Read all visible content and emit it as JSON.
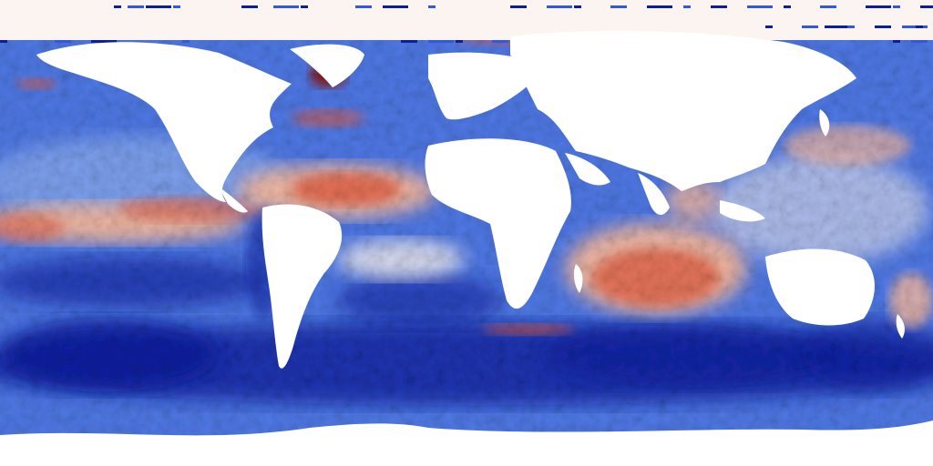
{
  "map": {
    "projection": "equirectangular",
    "variable_kind": "diverging anomaly field (ocean only)",
    "land_color": "#ffffff",
    "colors": {
      "cold_strong": "#0b1f9c",
      "cold": "#3557dc",
      "cold_light": "#8fb0f0",
      "neutral": "#f7f1ee",
      "warm_light": "#f4b89e",
      "warm": "#e0583a",
      "warm_strong": "#8c1208"
    }
  }
}
